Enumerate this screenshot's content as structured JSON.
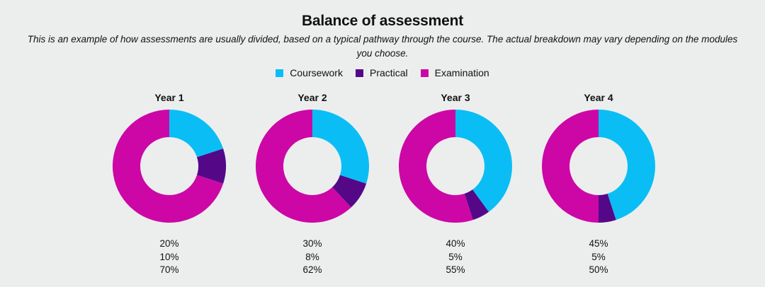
{
  "title": "Balance of assessment",
  "subtitle": "This is an example of how assessments are usually divided, based on a typical pathway through the course. The actual breakdown may vary depending on the modules you choose.",
  "legend": [
    {
      "label": "Coursework",
      "color": "#0abef5"
    },
    {
      "label": "Practical",
      "color": "#540888"
    },
    {
      "label": "Examination",
      "color": "#cc07a6"
    }
  ],
  "chart_data": [
    {
      "type": "pie",
      "title": "Year 1",
      "categories": [
        "Coursework",
        "Practical",
        "Examination"
      ],
      "values": [
        20,
        10,
        70
      ],
      "value_labels": [
        "20%",
        "10%",
        "70%"
      ]
    },
    {
      "type": "pie",
      "title": "Year 2",
      "categories": [
        "Coursework",
        "Practical",
        "Examination"
      ],
      "values": [
        30,
        8,
        62
      ],
      "value_labels": [
        "30%",
        "8%",
        "62%"
      ]
    },
    {
      "type": "pie",
      "title": "Year 3",
      "categories": [
        "Coursework",
        "Practical",
        "Examination"
      ],
      "values": [
        40,
        5,
        55
      ],
      "value_labels": [
        "40%",
        "5%",
        "55%"
      ]
    },
    {
      "type": "pie",
      "title": "Year 4",
      "categories": [
        "Coursework",
        "Practical",
        "Examination"
      ],
      "values": [
        45,
        5,
        50
      ],
      "value_labels": [
        "45%",
        "5%",
        "50%"
      ]
    }
  ]
}
